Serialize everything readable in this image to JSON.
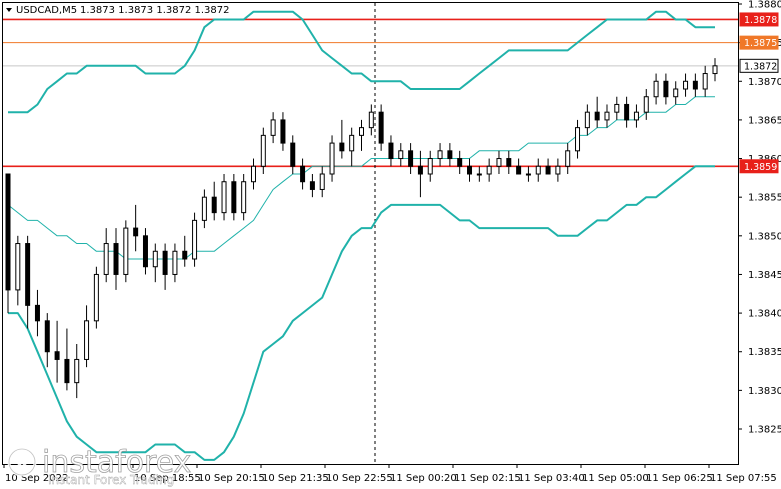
{
  "header": {
    "symbol": "USDCAD,M5",
    "ohlc": "1.3873 1.3873 1.3872 1.3872"
  },
  "watermark": {
    "brand": "instaforex",
    "tagline": "Instant Forex Trading"
  },
  "colors": {
    "bullish": "#000000",
    "bearish": "#000000",
    "bollinger": "#20b2aa",
    "ma": "#20b2aa",
    "level_red": "#e8201a",
    "level_orange": "#f07828",
    "current_price_bg": "#ffffff"
  },
  "chart_data": {
    "type": "candlestick",
    "y_axis": {
      "min": 1.382,
      "max": 1.388,
      "ticks": [
        "1.3880",
        "1.3875",
        "1.3870",
        "1.3865",
        "1.3860",
        "1.3855",
        "1.3850",
        "1.3845",
        "1.3840",
        "1.3835",
        "1.3830",
        "1.3825"
      ]
    },
    "x_axis": {
      "labels": [
        "10 Sep 2022",
        "10 Sep 18:55",
        "10 Sep 20:15",
        "10 Sep 21:35",
        "10 Sep 22:55",
        "11 Sep 00:20",
        "11 Sep 02:15",
        "11 Sep 03:40",
        "11 Sep 05:00",
        "11 Sep 06:25",
        "11 Sep 07:55"
      ]
    },
    "levels": [
      {
        "price": 1.3878,
        "label": "1.3878",
        "style": "red"
      },
      {
        "price": 1.3875,
        "label": "1.3875",
        "style": "orange"
      },
      {
        "price": 1.3872,
        "label": "1.3872",
        "style": "current"
      },
      {
        "price": 1.3859,
        "label": "1.3859",
        "style": "red"
      }
    ],
    "session_divider": "11 Sep 00:00",
    "candles": [
      [
        1.3858,
        1.3858,
        1.384,
        1.3843
      ],
      [
        1.3843,
        1.385,
        1.3841,
        1.3849
      ],
      [
        1.3849,
        1.385,
        1.3838,
        1.3841
      ],
      [
        1.3841,
        1.3843,
        1.3837,
        1.3839
      ],
      [
        1.3839,
        1.384,
        1.3833,
        1.3835
      ],
      [
        1.3835,
        1.3839,
        1.3831,
        1.3834
      ],
      [
        1.3834,
        1.3838,
        1.383,
        1.3831
      ],
      [
        1.3831,
        1.3836,
        1.3829,
        1.3834
      ],
      [
        1.3834,
        1.3841,
        1.3833,
        1.3839
      ],
      [
        1.3839,
        1.3846,
        1.3838,
        1.3845
      ],
      [
        1.3845,
        1.3851,
        1.3844,
        1.3849
      ],
      [
        1.3849,
        1.3851,
        1.3843,
        1.3845
      ],
      [
        1.3845,
        1.3852,
        1.3844,
        1.3851
      ],
      [
        1.3851,
        1.3854,
        1.3848,
        1.385
      ],
      [
        1.385,
        1.3851,
        1.3845,
        1.3846
      ],
      [
        1.3846,
        1.3849,
        1.3844,
        1.3848
      ],
      [
        1.3848,
        1.3849,
        1.3843,
        1.3845
      ],
      [
        1.3845,
        1.3849,
        1.3844,
        1.3848
      ],
      [
        1.3848,
        1.385,
        1.3846,
        1.3847
      ],
      [
        1.3847,
        1.3853,
        1.3846,
        1.3852
      ],
      [
        1.3852,
        1.3856,
        1.3851,
        1.3855
      ],
      [
        1.3855,
        1.3857,
        1.3852,
        1.3853
      ],
      [
        1.3853,
        1.3858,
        1.3852,
        1.3857
      ],
      [
        1.3857,
        1.3858,
        1.3852,
        1.3853
      ],
      [
        1.3853,
        1.3858,
        1.3852,
        1.3857
      ],
      [
        1.3857,
        1.386,
        1.3856,
        1.3859
      ],
      [
        1.3859,
        1.3864,
        1.3858,
        1.3863
      ],
      [
        1.3863,
        1.3866,
        1.3862,
        1.3865
      ],
      [
        1.3865,
        1.3866,
        1.3861,
        1.3862
      ],
      [
        1.3862,
        1.3863,
        1.3858,
        1.3859
      ],
      [
        1.3859,
        1.386,
        1.3856,
        1.3857
      ],
      [
        1.3857,
        1.3858,
        1.3855,
        1.3856
      ],
      [
        1.3856,
        1.3859,
        1.3855,
        1.3858
      ],
      [
        1.3858,
        1.3863,
        1.3857,
        1.3862
      ],
      [
        1.3862,
        1.3865,
        1.386,
        1.3861
      ],
      [
        1.3861,
        1.3864,
        1.3859,
        1.3863
      ],
      [
        1.3863,
        1.3865,
        1.3861,
        1.3864
      ],
      [
        1.3864,
        1.3867,
        1.3863,
        1.3866
      ],
      [
        1.3866,
        1.3867,
        1.3861,
        1.3862
      ],
      [
        1.3862,
        1.3863,
        1.3859,
        1.386
      ],
      [
        1.386,
        1.3862,
        1.3859,
        1.3861
      ],
      [
        1.3861,
        1.3862,
        1.3858,
        1.3859
      ],
      [
        1.3859,
        1.3861,
        1.3855,
        1.3858
      ],
      [
        1.3858,
        1.3861,
        1.3857,
        1.386
      ],
      [
        1.386,
        1.3862,
        1.3859,
        1.3861
      ],
      [
        1.3861,
        1.3862,
        1.3859,
        1.386
      ],
      [
        1.386,
        1.3861,
        1.3858,
        1.3859
      ],
      [
        1.3859,
        1.386,
        1.3857,
        1.3858
      ],
      [
        1.3858,
        1.3859,
        1.3857,
        1.3858
      ],
      [
        1.3858,
        1.386,
        1.3857,
        1.3859
      ],
      [
        1.3859,
        1.3861,
        1.3858,
        1.386
      ],
      [
        1.386,
        1.3861,
        1.3858,
        1.3859
      ],
      [
        1.3859,
        1.386,
        1.3858,
        1.3858
      ],
      [
        1.3858,
        1.3859,
        1.3857,
        1.3858
      ],
      [
        1.3858,
        1.386,
        1.3857,
        1.3859
      ],
      [
        1.3859,
        1.386,
        1.3858,
        1.3858
      ],
      [
        1.3858,
        1.386,
        1.3857,
        1.3859
      ],
      [
        1.3859,
        1.3862,
        1.3858,
        1.3861
      ],
      [
        1.3861,
        1.3865,
        1.386,
        1.3864
      ],
      [
        1.3864,
        1.3867,
        1.3863,
        1.3866
      ],
      [
        1.3866,
        1.3868,
        1.3864,
        1.3865
      ],
      [
        1.3865,
        1.3867,
        1.3864,
        1.3866
      ],
      [
        1.3866,
        1.3868,
        1.3865,
        1.3867
      ],
      [
        1.3867,
        1.3868,
        1.3864,
        1.3865
      ],
      [
        1.3865,
        1.3867,
        1.3864,
        1.3866
      ],
      [
        1.3866,
        1.3869,
        1.3865,
        1.3868
      ],
      [
        1.3868,
        1.3871,
        1.3867,
        1.387
      ],
      [
        1.387,
        1.3871,
        1.3867,
        1.3868
      ],
      [
        1.3868,
        1.387,
        1.3867,
        1.3869
      ],
      [
        1.3869,
        1.3871,
        1.3868,
        1.387
      ],
      [
        1.387,
        1.3871,
        1.3868,
        1.3869
      ],
      [
        1.3869,
        1.3872,
        1.3868,
        1.3871
      ],
      [
        1.3871,
        1.3873,
        1.387,
        1.3872
      ]
    ],
    "bollinger_upper": [
      1.3866,
      1.3866,
      1.3866,
      1.3867,
      1.3869,
      1.387,
      1.3871,
      1.3871,
      1.3872,
      1.3872,
      1.3872,
      1.3872,
      1.3872,
      1.3872,
      1.3871,
      1.3871,
      1.3871,
      1.3871,
      1.3872,
      1.3874,
      1.3877,
      1.3878,
      1.3878,
      1.3878,
      1.3878,
      1.3879,
      1.3879,
      1.3879,
      1.3879,
      1.3879,
      1.3878,
      1.3876,
      1.3874,
      1.3873,
      1.3872,
      1.3871,
      1.3871,
      1.387,
      1.387,
      1.387,
      1.387,
      1.3869,
      1.3869,
      1.3869,
      1.3869,
      1.3869,
      1.3869,
      1.387,
      1.3871,
      1.3872,
      1.3873,
      1.3874,
      1.3874,
      1.3874,
      1.3874,
      1.3874,
      1.3874,
      1.3874,
      1.3875,
      1.3876,
      1.3877,
      1.3878,
      1.3878,
      1.3878,
      1.3878,
      1.3878,
      1.3879,
      1.3879,
      1.3878,
      1.3878,
      1.3877,
      1.3877,
      1.3877
    ],
    "bollinger_lower": [
      1.384,
      1.384,
      1.3838,
      1.3835,
      1.3832,
      1.3829,
      1.3826,
      1.3824,
      1.3823,
      1.3822,
      1.3822,
      1.3822,
      1.3822,
      1.3822,
      1.3822,
      1.3823,
      1.3823,
      1.3823,
      1.3822,
      1.3822,
      1.3821,
      1.3821,
      1.3822,
      1.3824,
      1.3827,
      1.3831,
      1.3835,
      1.3836,
      1.3837,
      1.3839,
      1.384,
      1.3841,
      1.3842,
      1.3845,
      1.3848,
      1.385,
      1.3851,
      1.3851,
      1.3853,
      1.3854,
      1.3854,
      1.3854,
      1.3854,
      1.3854,
      1.3854,
      1.3853,
      1.3852,
      1.3852,
      1.3851,
      1.3851,
      1.3851,
      1.3851,
      1.3851,
      1.3851,
      1.3851,
      1.3851,
      1.385,
      1.385,
      1.385,
      1.3851,
      1.3852,
      1.3852,
      1.3853,
      1.3854,
      1.3854,
      1.3855,
      1.3855,
      1.3856,
      1.3857,
      1.3858,
      1.3859,
      1.3859,
      1.3859
    ],
    "moving_average": [
      1.3854,
      1.3853,
      1.3852,
      1.3852,
      1.3851,
      1.385,
      1.385,
      1.3849,
      1.3849,
      1.3848,
      1.3848,
      1.3848,
      1.3847,
      1.3847,
      1.3847,
      1.3847,
      1.3847,
      1.3847,
      1.3847,
      1.3848,
      1.3848,
      1.3848,
      1.3849,
      1.385,
      1.3851,
      1.3852,
      1.3854,
      1.3856,
      1.3857,
      1.3858,
      1.3858,
      1.3859,
      1.3859,
      1.3859,
      1.3859,
      1.3859,
      1.3859,
      1.386,
      1.386,
      1.386,
      1.386,
      1.386,
      1.386,
      1.386,
      1.386,
      1.386,
      1.386,
      1.386,
      1.3861,
      1.3861,
      1.3861,
      1.3861,
      1.3861,
      1.3862,
      1.3862,
      1.3862,
      1.3862,
      1.3862,
      1.3863,
      1.3863,
      1.3864,
      1.3864,
      1.3865,
      1.3865,
      1.3865,
      1.3866,
      1.3866,
      1.3866,
      1.3867,
      1.3867,
      1.3868,
      1.3868,
      1.3868
    ]
  }
}
